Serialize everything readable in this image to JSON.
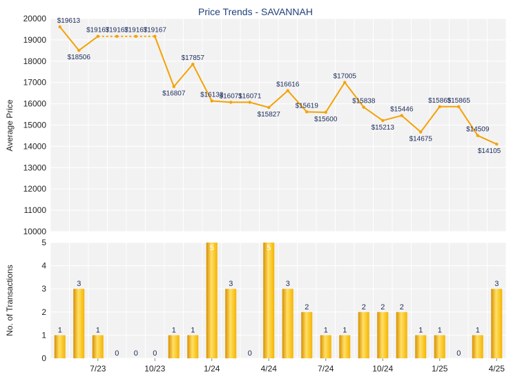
{
  "colors": {
    "line": "#f5a100",
    "bar_light": "#ffe066",
    "bar_mid": "#f5b400",
    "bar_dark": "#d98e00",
    "plot_bg": "#f2f2f2",
    "grid": "#ffffff",
    "title": "#1f3f7a"
  },
  "chart_data": [
    {
      "type": "line",
      "title": "Price Trends - SAVANNAH",
      "ylabel": "Average Price",
      "ylim": [
        10000,
        20000
      ],
      "yticks": [
        10000,
        11000,
        12000,
        13000,
        14000,
        15000,
        16000,
        17000,
        18000,
        19000,
        20000
      ],
      "points": [
        {
          "value": 19613,
          "label": "$19613"
        },
        {
          "value": 18506,
          "label": "$18506"
        },
        {
          "value": 19167,
          "label": "$19167"
        },
        {
          "value": 19167,
          "label": "$19167"
        },
        {
          "value": 19167,
          "label": "$19167"
        },
        {
          "value": 19167,
          "label": "$19167"
        },
        {
          "value": 16807,
          "label": "$16807"
        },
        {
          "value": 17857,
          "label": "$17857"
        },
        {
          "value": 16133,
          "label": "$16133"
        },
        {
          "value": 16071,
          "label": "$16071"
        },
        {
          "value": 16071,
          "label": "$16071"
        },
        {
          "value": 15827,
          "label": "$15827"
        },
        {
          "value": 16616,
          "label": "$16616"
        },
        {
          "value": 15619,
          "label": "$15619"
        },
        {
          "value": 15600,
          "label": "$15600"
        },
        {
          "value": 17005,
          "label": "$17005"
        },
        {
          "value": 15838,
          "label": "$15838"
        },
        {
          "value": 15213,
          "label": "$15213"
        },
        {
          "value": 15446,
          "label": "$15446"
        },
        {
          "value": 14675,
          "label": "$14675"
        },
        {
          "value": 15865,
          "label": "$15865"
        },
        {
          "value": 15865,
          "label": "$15865"
        },
        {
          "value": 14509,
          "label": "$14509"
        },
        {
          "value": 14105,
          "label": "$14105"
        }
      ],
      "dashed_segments": [
        [
          2,
          5
        ]
      ]
    },
    {
      "type": "bar",
      "ylabel": "No. of Transactions",
      "ylim": [
        0,
        5
      ],
      "yticks": [
        0,
        1,
        2,
        3,
        4,
        5
      ],
      "values": [
        1,
        3,
        1,
        0,
        0,
        0,
        1,
        1,
        5,
        3,
        0,
        5,
        3,
        2,
        1,
        1,
        2,
        2,
        2,
        1,
        1,
        0,
        1,
        3
      ],
      "xtick_labels": [
        {
          "index": 2.5,
          "label": "7/23"
        },
        {
          "index": 5.5,
          "label": "10/23"
        },
        {
          "index": 8.5,
          "label": "1/24"
        },
        {
          "index": 11.5,
          "label": "4/24"
        },
        {
          "index": 14.5,
          "label": "7/24"
        },
        {
          "index": 17.5,
          "label": "10/24"
        },
        {
          "index": 20.5,
          "label": "1/25"
        },
        {
          "index": 23.5,
          "label": "4/25"
        }
      ]
    }
  ]
}
